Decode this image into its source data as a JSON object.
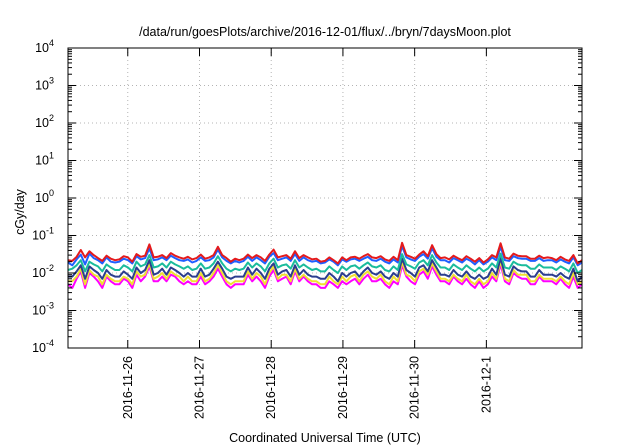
{
  "chart_data": {
    "type": "line",
    "title": "/data/run/goesPlots/archive/2016-12-01/flux/../bryn/7daysMoon.plot",
    "xlabel": "Coordinated Universal Time (UTC)",
    "ylabel": "cGy/day",
    "y_scale": "log",
    "ylim": [
      0.0001,
      10000
    ],
    "y_ticks": [
      {
        "base": "10",
        "exp": "-4",
        "value": 0.0001
      },
      {
        "base": "10",
        "exp": "-3",
        "value": 0.001
      },
      {
        "base": "10",
        "exp": "-2",
        "value": 0.01
      },
      {
        "base": "10",
        "exp": "-1",
        "value": 0.1
      },
      {
        "base": "10",
        "exp": "0",
        "value": 1
      },
      {
        "base": "10",
        "exp": "1",
        "value": 10
      },
      {
        "base": "10",
        "exp": "2",
        "value": 100
      },
      {
        "base": "10",
        "exp": "3",
        "value": 1000
      },
      {
        "base": "10",
        "exp": "4",
        "value": 10000
      }
    ],
    "xlim": [
      "2016-11-25 04:00",
      "2016-12-02 08:00"
    ],
    "x_ticks": [
      "2016-11-26",
      "2016-11-27",
      "2016-11-28",
      "2016-11-29",
      "2016-11-30",
      "2016-12-1"
    ],
    "x_tick_dates": [
      "2016-11-26",
      "2016-11-27",
      "2016-11-28",
      "2016-11-29",
      "2016-11-30",
      "2016-12-01"
    ],
    "grid": true,
    "legend": "none",
    "series_colors": [
      "#e41a1c",
      "#1f5fff",
      "#1abc9c",
      "#2c3e8f",
      "#f0e030",
      "#ff00ff"
    ],
    "series_note": "six unlabeled series; approximately 2-hour sampling, values ~0.004-0.05 cGy/day",
    "series": [
      {
        "color": "#e41a1c",
        "values": [
          0.022,
          0.021,
          0.027,
          0.041,
          0.026,
          0.038,
          0.03,
          0.025,
          0.021,
          0.029,
          0.024,
          0.022,
          0.023,
          0.028,
          0.026,
          0.02,
          0.032,
          0.027,
          0.029,
          0.058,
          0.026,
          0.027,
          0.03,
          0.025,
          0.034,
          0.029,
          0.026,
          0.024,
          0.027,
          0.023,
          0.025,
          0.031,
          0.024,
          0.026,
          0.03,
          0.05,
          0.03,
          0.025,
          0.02,
          0.024,
          0.022,
          0.024,
          0.031,
          0.025,
          0.03,
          0.026,
          0.021,
          0.031,
          0.042,
          0.026,
          0.028,
          0.03,
          0.024,
          0.038,
          0.025,
          0.03,
          0.026,
          0.023,
          0.024,
          0.02,
          0.021,
          0.026,
          0.022,
          0.018,
          0.026,
          0.022,
          0.026,
          0.027,
          0.024,
          0.028,
          0.032,
          0.026,
          0.025,
          0.028,
          0.023,
          0.021,
          0.027,
          0.022,
          0.064,
          0.03,
          0.027,
          0.024,
          0.031,
          0.038,
          0.028,
          0.055,
          0.032,
          0.025,
          0.026,
          0.023,
          0.029,
          0.025,
          0.022,
          0.028,
          0.024,
          0.02,
          0.025,
          0.019,
          0.023,
          0.03,
          0.026,
          0.062,
          0.026,
          0.024,
          0.033,
          0.029,
          0.028,
          0.028,
          0.024,
          0.024,
          0.029,
          0.025,
          0.026,
          0.025,
          0.022,
          0.027,
          0.023,
          0.021,
          0.03,
          0.018,
          0.022
        ]
      },
      {
        "color": "#1f5fff",
        "values": [
          0.019,
          0.016,
          0.023,
          0.031,
          0.017,
          0.033,
          0.025,
          0.022,
          0.018,
          0.026,
          0.02,
          0.019,
          0.02,
          0.024,
          0.022,
          0.018,
          0.028,
          0.023,
          0.025,
          0.045,
          0.022,
          0.023,
          0.026,
          0.022,
          0.029,
          0.025,
          0.022,
          0.021,
          0.023,
          0.019,
          0.021,
          0.026,
          0.021,
          0.022,
          0.026,
          0.042,
          0.026,
          0.021,
          0.018,
          0.021,
          0.019,
          0.021,
          0.027,
          0.021,
          0.026,
          0.022,
          0.018,
          0.027,
          0.034,
          0.022,
          0.024,
          0.026,
          0.021,
          0.032,
          0.021,
          0.026,
          0.022,
          0.02,
          0.021,
          0.018,
          0.019,
          0.023,
          0.02,
          0.016,
          0.023,
          0.02,
          0.023,
          0.024,
          0.021,
          0.024,
          0.027,
          0.022,
          0.021,
          0.024,
          0.02,
          0.018,
          0.023,
          0.019,
          0.052,
          0.026,
          0.023,
          0.021,
          0.027,
          0.032,
          0.024,
          0.046,
          0.027,
          0.022,
          0.022,
          0.019,
          0.025,
          0.022,
          0.019,
          0.024,
          0.021,
          0.017,
          0.022,
          0.017,
          0.02,
          0.026,
          0.022,
          0.05,
          0.022,
          0.021,
          0.028,
          0.025,
          0.024,
          0.024,
          0.021,
          0.021,
          0.025,
          0.021,
          0.022,
          0.022,
          0.019,
          0.023,
          0.02,
          0.018,
          0.026,
          0.016,
          0.019
        ]
      },
      {
        "color": "#1abc9c",
        "values": [
          0.012,
          0.013,
          0.016,
          0.022,
          0.011,
          0.02,
          0.017,
          0.015,
          0.011,
          0.017,
          0.014,
          0.012,
          0.012,
          0.016,
          0.014,
          0.011,
          0.02,
          0.015,
          0.017,
          0.03,
          0.014,
          0.015,
          0.018,
          0.014,
          0.02,
          0.017,
          0.015,
          0.013,
          0.015,
          0.012,
          0.013,
          0.018,
          0.013,
          0.014,
          0.018,
          0.028,
          0.018,
          0.013,
          0.011,
          0.013,
          0.012,
          0.013,
          0.019,
          0.014,
          0.018,
          0.015,
          0.011,
          0.018,
          0.024,
          0.014,
          0.016,
          0.017,
          0.013,
          0.022,
          0.014,
          0.017,
          0.014,
          0.012,
          0.013,
          0.011,
          0.011,
          0.015,
          0.012,
          0.01,
          0.015,
          0.012,
          0.015,
          0.016,
          0.013,
          0.016,
          0.019,
          0.015,
          0.014,
          0.016,
          0.012,
          0.011,
          0.015,
          0.012,
          0.032,
          0.017,
          0.015,
          0.013,
          0.019,
          0.022,
          0.016,
          0.03,
          0.019,
          0.014,
          0.014,
          0.012,
          0.017,
          0.014,
          0.012,
          0.016,
          0.013,
          0.011,
          0.014,
          0.011,
          0.013,
          0.018,
          0.014,
          0.033,
          0.014,
          0.013,
          0.02,
          0.017,
          0.016,
          0.016,
          0.013,
          0.013,
          0.017,
          0.014,
          0.014,
          0.014,
          0.012,
          0.015,
          0.013,
          0.011,
          0.018,
          0.01,
          0.012
        ]
      },
      {
        "color": "#2c3e8f",
        "values": [
          0.008,
          0.008,
          0.011,
          0.016,
          0.007,
          0.015,
          0.012,
          0.01,
          0.007,
          0.012,
          0.009,
          0.008,
          0.008,
          0.011,
          0.009,
          0.007,
          0.014,
          0.01,
          0.012,
          0.022,
          0.009,
          0.01,
          0.013,
          0.009,
          0.014,
          0.012,
          0.01,
          0.008,
          0.01,
          0.008,
          0.008,
          0.013,
          0.008,
          0.009,
          0.013,
          0.02,
          0.013,
          0.008,
          0.007,
          0.008,
          0.008,
          0.008,
          0.014,
          0.009,
          0.013,
          0.01,
          0.007,
          0.013,
          0.018,
          0.009,
          0.011,
          0.012,
          0.008,
          0.016,
          0.009,
          0.012,
          0.009,
          0.008,
          0.008,
          0.007,
          0.007,
          0.01,
          0.008,
          0.006,
          0.01,
          0.008,
          0.01,
          0.011,
          0.008,
          0.011,
          0.014,
          0.01,
          0.009,
          0.011,
          0.008,
          0.007,
          0.01,
          0.008,
          0.024,
          0.012,
          0.01,
          0.008,
          0.014,
          0.016,
          0.011,
          0.022,
          0.014,
          0.009,
          0.009,
          0.008,
          0.012,
          0.009,
          0.008,
          0.011,
          0.008,
          0.007,
          0.009,
          0.007,
          0.008,
          0.013,
          0.009,
          0.025,
          0.009,
          0.008,
          0.015,
          0.012,
          0.011,
          0.011,
          0.008,
          0.008,
          0.012,
          0.009,
          0.009,
          0.009,
          0.008,
          0.01,
          0.008,
          0.007,
          0.013,
          0.006,
          0.008
        ]
      },
      {
        "color": "#f0e030",
        "values": [
          0.006,
          0.006,
          0.008,
          0.013,
          0.005,
          0.012,
          0.009,
          0.008,
          0.005,
          0.009,
          0.007,
          0.006,
          0.006,
          0.008,
          0.007,
          0.005,
          0.011,
          0.008,
          0.009,
          0.018,
          0.007,
          0.008,
          0.01,
          0.007,
          0.011,
          0.009,
          0.008,
          0.006,
          0.008,
          0.006,
          0.006,
          0.01,
          0.006,
          0.007,
          0.01,
          0.016,
          0.01,
          0.006,
          0.005,
          0.006,
          0.006,
          0.006,
          0.011,
          0.007,
          0.01,
          0.008,
          0.005,
          0.01,
          0.015,
          0.007,
          0.009,
          0.009,
          0.006,
          0.013,
          0.007,
          0.009,
          0.007,
          0.006,
          0.006,
          0.005,
          0.005,
          0.008,
          0.006,
          0.005,
          0.008,
          0.006,
          0.008,
          0.009,
          0.006,
          0.009,
          0.011,
          0.008,
          0.007,
          0.009,
          0.006,
          0.005,
          0.008,
          0.006,
          0.02,
          0.009,
          0.008,
          0.006,
          0.011,
          0.013,
          0.009,
          0.018,
          0.011,
          0.007,
          0.007,
          0.006,
          0.009,
          0.007,
          0.006,
          0.009,
          0.006,
          0.005,
          0.007,
          0.005,
          0.006,
          0.01,
          0.007,
          0.021,
          0.007,
          0.006,
          0.012,
          0.009,
          0.009,
          0.009,
          0.006,
          0.006,
          0.009,
          0.007,
          0.007,
          0.007,
          0.006,
          0.008,
          0.006,
          0.005,
          0.01,
          0.005,
          0.006
        ]
      },
      {
        "color": "#ff00ff",
        "values": [
          0.005,
          0.004,
          0.007,
          0.011,
          0.004,
          0.01,
          0.008,
          0.006,
          0.004,
          0.008,
          0.006,
          0.005,
          0.005,
          0.007,
          0.006,
          0.004,
          0.009,
          0.006,
          0.008,
          0.015,
          0.006,
          0.006,
          0.008,
          0.006,
          0.009,
          0.008,
          0.006,
          0.005,
          0.006,
          0.005,
          0.005,
          0.008,
          0.005,
          0.006,
          0.008,
          0.013,
          0.008,
          0.005,
          0.004,
          0.005,
          0.005,
          0.005,
          0.009,
          0.006,
          0.008,
          0.006,
          0.004,
          0.008,
          0.012,
          0.006,
          0.007,
          0.008,
          0.005,
          0.011,
          0.006,
          0.008,
          0.006,
          0.005,
          0.005,
          0.004,
          0.004,
          0.006,
          0.005,
          0.004,
          0.006,
          0.005,
          0.006,
          0.007,
          0.005,
          0.007,
          0.009,
          0.006,
          0.006,
          0.007,
          0.005,
          0.004,
          0.006,
          0.005,
          0.016,
          0.008,
          0.006,
          0.005,
          0.009,
          0.011,
          0.007,
          0.015,
          0.009,
          0.006,
          0.006,
          0.005,
          0.008,
          0.006,
          0.005,
          0.007,
          0.005,
          0.004,
          0.006,
          0.004,
          0.005,
          0.008,
          0.006,
          0.017,
          0.006,
          0.005,
          0.01,
          0.008,
          0.007,
          0.007,
          0.005,
          0.005,
          0.008,
          0.006,
          0.006,
          0.006,
          0.005,
          0.007,
          0.005,
          0.004,
          0.008,
          0.004,
          0.005
        ]
      }
    ]
  }
}
